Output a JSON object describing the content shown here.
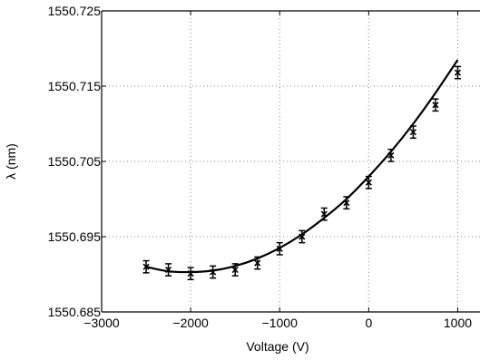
{
  "chart_data": {
    "type": "scatter",
    "xlabel": "Voltage (V)",
    "ylabel": "λ (nm)",
    "xlim": [
      -3000,
      1250
    ],
    "ylim": [
      1550.685,
      1550.725
    ],
    "x_ticks": [
      -3000,
      -2000,
      -1000,
      0,
      1000
    ],
    "x_tick_labels": [
      "−3000",
      "−2000",
      "−1000",
      "0",
      "1000"
    ],
    "y_ticks": [
      1550.685,
      1550.695,
      1550.705,
      1550.715,
      1550.725
    ],
    "y_tick_labels": [
      "1550.685",
      "1550.695",
      "1550.705",
      "1550.715",
      "1550.725"
    ],
    "grid": true,
    "grid_style": "dotted",
    "series": [
      {
        "kind": "points-with-error-bars",
        "x": [
          -2500,
          -2250,
          -2000,
          -1750,
          -1500,
          -1250,
          -1000,
          -750,
          -500,
          -250,
          0,
          250,
          500,
          750,
          1000
        ],
        "y": [
          1550.691,
          1550.6906,
          1550.6901,
          1550.6903,
          1550.6906,
          1550.6915,
          1550.6934,
          1550.695,
          1550.698,
          1550.6995,
          1550.7022,
          1550.7058,
          1550.7089,
          1550.7125,
          1550.7168
        ],
        "err": [
          0.0008,
          0.0008,
          0.0008,
          0.0008,
          0.0008,
          0.0008,
          0.0008,
          0.0008,
          0.0008,
          0.0008,
          0.0008,
          0.0008,
          0.0008,
          0.0008,
          0.0008
        ],
        "color": "#000000"
      },
      {
        "kind": "fit-line",
        "x": [
          -2500,
          -2250,
          -2000,
          -1750,
          -1500,
          -1250,
          -1000,
          -750,
          -500,
          -250,
          0,
          250,
          500,
          750,
          1000
        ],
        "y": [
          1550.691,
          1550.6904,
          1550.6903,
          1550.6905,
          1550.6911,
          1550.6921,
          1550.6935,
          1550.6953,
          1550.6975,
          1550.7,
          1550.703,
          1550.7063,
          1550.71,
          1550.7141,
          1550.7185
        ],
        "color": "#000000"
      }
    ]
  }
}
